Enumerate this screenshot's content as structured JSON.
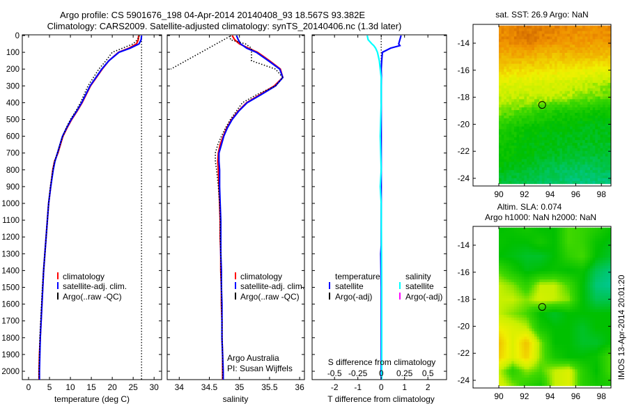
{
  "title": {
    "line1": "Argo profile: CS 5901676_198 04-Apr-2014 20140408_93 18.567S 93.382E",
    "line2": "Climatology: CARS2009. Satellite-adjusted climatology: synTS_20140406.nc (1.3d later)"
  },
  "depth_axis": {
    "ticks": [
      0,
      100,
      200,
      300,
      400,
      500,
      600,
      700,
      800,
      900,
      1000,
      1100,
      1200,
      1300,
      1400,
      1500,
      1600,
      1700,
      1800,
      1900,
      2000
    ],
    "range": [
      0,
      2050
    ]
  },
  "chart_data": [
    {
      "type": "line",
      "title": "temperature profile",
      "xlabel": "temperature (deg C)",
      "xlim": [
        -1.5,
        31.8
      ],
      "xticks": [
        0,
        5,
        10,
        15,
        20,
        25,
        30
      ],
      "reference_line": {
        "value": 27,
        "color": "#000000",
        "style": "dotted"
      },
      "legend": [
        "climatology",
        "satellite-adj. clim.",
        "Argo(..raw -QC)"
      ],
      "series": [
        {
          "name": "climatology",
          "color": "#ff0000",
          "style": "solid",
          "depth": [
            0,
            25,
            50,
            75,
            100,
            150,
            200,
            250,
            300,
            350,
            400,
            450,
            500,
            550,
            600,
            650,
            700,
            750,
            800,
            900,
            1000,
            1100,
            1200,
            1300,
            1400,
            1500,
            1600,
            1700,
            1800,
            1900,
            2000,
            2050
          ],
          "values": [
            26.3,
            26.2,
            25.8,
            24,
            21.5,
            19.2,
            17.6,
            16.2,
            14.8,
            13.8,
            12.8,
            11.6,
            10.3,
            9.2,
            8.2,
            7.6,
            7.0,
            6.2,
            5.8,
            5.3,
            4.8,
            4.5,
            4.2,
            3.9,
            3.6,
            3.4,
            3.2,
            3.0,
            2.8,
            2.6,
            2.5,
            2.5
          ]
        },
        {
          "name": "satellite-adj. clim.",
          "color": "#0000ff",
          "style": "solid",
          "depth": [
            0,
            25,
            50,
            75,
            100,
            150,
            200,
            250,
            300,
            350,
            400,
            450,
            500,
            550,
            600,
            650,
            700,
            750,
            800,
            900,
            1000,
            1100,
            1200,
            1300,
            1400,
            1500,
            1600,
            1700,
            1800,
            1900,
            2000,
            2050
          ],
          "values": [
            27.0,
            26.9,
            26.4,
            24.3,
            21.6,
            19.2,
            17.5,
            16.1,
            14.7,
            13.7,
            12.7,
            11.5,
            10.2,
            9.1,
            8.1,
            7.5,
            6.9,
            6.3,
            5.9,
            5.3,
            4.8,
            4.5,
            4.2,
            3.9,
            3.6,
            3.4,
            3.2,
            3.0,
            2.8,
            2.7,
            2.6,
            2.6
          ]
        },
        {
          "name": "Argo(..raw -QC)",
          "color": "#000000",
          "style": "dotted",
          "depth": [
            0,
            25,
            50,
            75,
            100,
            150,
            200,
            250,
            300,
            350,
            400,
            450,
            500,
            550,
            600,
            650,
            700,
            750,
            800,
            900,
            1000,
            1100,
            1200,
            1300,
            1400,
            1500,
            1600,
            1700,
            1800,
            1900,
            2000,
            2050
          ],
          "values": [
            26.5,
            26.0,
            25.0,
            22.5,
            20.0,
            18.5,
            16.8,
            15.5,
            14.2,
            13.3,
            12.4,
            11.3,
            10.0,
            9.0,
            8.2,
            7.5,
            6.9,
            6.2,
            5.8,
            5.2,
            4.8,
            4.5,
            4.2,
            3.9,
            3.6,
            3.3,
            3.1,
            2.9,
            2.7,
            2.6,
            2.5,
            2.5
          ]
        }
      ]
    },
    {
      "type": "line",
      "title": "salinity profile",
      "xlabel": "salinity",
      "xlim": [
        33.8,
        36.08
      ],
      "xticks": [
        34,
        34.5,
        35,
        35.5,
        36
      ],
      "legend": [
        "climatology",
        "satellite-adj. clim.",
        "Argo(..raw -QC)"
      ],
      "annotation": [
        "Argo Australia",
        "PI: Susan Wijffels"
      ],
      "series": [
        {
          "name": "climatology",
          "color": "#ff0000",
          "style": "solid",
          "depth": [
            0,
            25,
            50,
            75,
            100,
            150,
            200,
            250,
            300,
            350,
            400,
            450,
            500,
            550,
            600,
            650,
            700,
            750,
            800,
            900,
            1000,
            1100,
            1200,
            1300,
            1400,
            1500,
            1600,
            1700,
            1800,
            1900,
            2000,
            2050
          ],
          "values": [
            34.88,
            34.92,
            35.0,
            35.15,
            35.3,
            35.5,
            35.68,
            35.72,
            35.58,
            35.35,
            35.12,
            34.98,
            34.87,
            34.79,
            34.73,
            34.68,
            34.65,
            34.64,
            34.65,
            34.66,
            34.67,
            34.68,
            34.68,
            34.69,
            34.69,
            34.7,
            34.7,
            34.71,
            34.71,
            34.72,
            34.72,
            34.72
          ]
        },
        {
          "name": "satellite-adj. clim.",
          "color": "#0000ff",
          "style": "solid",
          "depth": [
            0,
            25,
            50,
            75,
            100,
            150,
            200,
            250,
            300,
            350,
            400,
            450,
            500,
            550,
            600,
            650,
            700,
            750,
            800,
            900,
            1000,
            1100,
            1200,
            1300,
            1400,
            1500,
            1600,
            1700,
            1800,
            1900,
            2000,
            2050
          ],
          "values": [
            34.95,
            34.98,
            35.02,
            35.12,
            35.28,
            35.48,
            35.67,
            35.72,
            35.6,
            35.37,
            35.13,
            34.99,
            34.88,
            34.8,
            34.74,
            34.7,
            34.66,
            34.66,
            34.67,
            34.67,
            34.68,
            34.69,
            34.69,
            34.69,
            34.7,
            34.7,
            34.71,
            34.71,
            34.71,
            34.72,
            34.73,
            34.73
          ]
        },
        {
          "name": "Argo(..raw -QC)",
          "color": "#000000",
          "style": "dotted",
          "depth": [
            0,
            25,
            50,
            75,
            100,
            150,
            200,
            250,
            300,
            350,
            400,
            450,
            500,
            550,
            600,
            650,
            700,
            750,
            800,
            900,
            1000,
            1100,
            1200,
            1300,
            1400,
            1500,
            1600,
            1700,
            1800,
            1900,
            2000,
            2050
          ],
          "values": [
            34.85,
            34.85,
            35.1,
            35.2,
            35.2,
            35.2,
            35.6,
            35.72,
            35.6,
            35.3,
            35.05,
            34.95,
            34.85,
            34.77,
            34.7,
            34.64,
            34.6,
            34.6,
            34.62,
            34.65,
            34.67,
            34.68,
            34.68,
            34.69,
            34.69,
            34.7,
            34.7,
            34.71,
            34.71,
            34.72,
            34.72,
            34.72
          ]
        },
        {
          "name": "Argo raw segment",
          "color": "#000000",
          "style": "dotted",
          "depth": [
            5,
            200
          ],
          "values": [
            34.84,
            33.86
          ]
        }
      ]
    },
    {
      "type": "line",
      "title": "difference from climatology",
      "xlabel": "T difference from climatology",
      "xlim": [
        -2.96,
        2.8
      ],
      "xticks": [
        -2,
        -1,
        0,
        1,
        2
      ],
      "secondary_xlabel": "S difference from climatology",
      "secondary_xticks": [
        -0.5,
        -0.25,
        0,
        0.25,
        0.5
      ],
      "secondary_xtick_labels": [
        "-0.5",
        "-0.25",
        "0",
        "0.25",
        "0.5"
      ],
      "secondary_scale": 4,
      "reference_line": {
        "value": 0,
        "depth": [
          0,
          250
        ],
        "color": "#000000",
        "style": "dotted"
      },
      "legend_temperature": {
        "heading": "temperature",
        "items": [
          "satellite",
          "Argo(-adj)"
        ],
        "colors": [
          "#0000ff",
          "#000000"
        ]
      },
      "legend_salinity": {
        "heading": "salinity",
        "items": [
          "satellite",
          "Argo(-adj)"
        ],
        "colors": [
          "#00ffff",
          "#ff00ff"
        ]
      },
      "series": [
        {
          "name": "temperature satellite",
          "color": "#0000ff",
          "style": "solid",
          "axis": "T",
          "depth": [
            0,
            25,
            50,
            60,
            75,
            100,
            150,
            200,
            250,
            300,
            400,
            600,
            1000,
            1250,
            1300,
            1500,
            2000,
            2050
          ],
          "values": [
            0.85,
            0.8,
            0.75,
            0.8,
            0.4,
            0.05,
            0.02,
            0.0,
            0.01,
            0.0,
            0.0,
            0,
            0,
            0,
            -0.02,
            0,
            0,
            0
          ]
        },
        {
          "name": "salinity satellite",
          "color": "#00ffff",
          "style": "solid",
          "axis": "S",
          "depth": [
            0,
            25,
            50,
            60,
            75,
            100,
            150,
            200,
            250,
            300,
            400,
            600,
            800,
            900,
            1000,
            1500,
            2000,
            2050
          ],
          "values": [
            -0.15,
            -0.14,
            -0.1,
            -0.08,
            -0.06,
            -0.04,
            -0.02,
            -0.01,
            0,
            0,
            0,
            -0.01,
            0,
            -0.01,
            0.0,
            0.005,
            0.005,
            0.005
          ]
        }
      ]
    },
    {
      "type": "heatmap",
      "title": "sat. SST: 26.9 Argo: NaN",
      "lon_range": [
        90,
        98.7
      ],
      "lat_range": [
        -24.4,
        -12.7
      ],
      "xticks": [
        90,
        92,
        94,
        96,
        98
      ],
      "yticks": [
        -14,
        -16,
        -18,
        -20,
        -22,
        -24
      ],
      "marker": {
        "lon": 93.382,
        "lat": -18.567
      },
      "grid_lats": [
        -13,
        -14,
        -15,
        -16,
        -17,
        -18,
        -19,
        -20,
        -21,
        -22,
        -23,
        -24
      ],
      "grid_values": [
        [
          0.86,
          0.9,
          0.88,
          0.85,
          0.87
        ],
        [
          0.85,
          0.9,
          0.86,
          0.83,
          0.84
        ],
        [
          0.8,
          0.8,
          0.76,
          0.78,
          0.76
        ],
        [
          0.72,
          0.7,
          0.68,
          0.66,
          0.64
        ],
        [
          0.6,
          0.6,
          0.58,
          0.56,
          0.52
        ],
        [
          0.56,
          0.55,
          0.55,
          0.5,
          0.46
        ],
        [
          0.5,
          0.44,
          0.36,
          0.34,
          0.32
        ],
        [
          0.4,
          0.32,
          0.3,
          0.28,
          0.28
        ],
        [
          0.34,
          0.3,
          0.28,
          0.27,
          0.26
        ],
        [
          0.32,
          0.29,
          0.26,
          0.24,
          0.24
        ],
        [
          0.28,
          0.25,
          0.2,
          0.18,
          0.2
        ],
        [
          0.24,
          0.2,
          0.18,
          0.14,
          0.15
        ]
      ]
    },
    {
      "type": "heatmap",
      "title": "Altim. SLA: 0.074",
      "subtitle": "Argo h1000: NaN h2000: NaN",
      "lon_range": [
        90,
        98.7
      ],
      "lat_range": [
        -24.4,
        -12.7
      ],
      "xticks": [
        90,
        92,
        94,
        96,
        98
      ],
      "yticks": [
        -14,
        -16,
        -18,
        -20,
        -22,
        -24
      ],
      "marker": {
        "lon": 93.382,
        "lat": -18.567
      },
      "grid_lats": [
        -13,
        -14,
        -15,
        -16,
        -17,
        -18,
        -19,
        -20,
        -21,
        -22,
        -23,
        -24
      ],
      "grid_values": [
        [
          0.3,
          0.32,
          0.35,
          0.3,
          0.3,
          0.45,
          0.42,
          0.38,
          0.32
        ],
        [
          0.32,
          0.3,
          0.3,
          0.35,
          0.3,
          0.45,
          0.42,
          0.32,
          0.28
        ],
        [
          0.3,
          0.28,
          0.25,
          0.25,
          0.3,
          0.4,
          0.45,
          0.3,
          0.25
        ],
        [
          0.45,
          0.35,
          0.28,
          0.3,
          0.32,
          0.3,
          0.32,
          0.2,
          0.15
        ],
        [
          0.55,
          0.5,
          0.4,
          0.55,
          0.55,
          0.45,
          0.3,
          0.15,
          0.12
        ],
        [
          0.55,
          0.55,
          0.5,
          0.58,
          0.55,
          0.5,
          0.3,
          0.2,
          0.2
        ],
        [
          0.55,
          0.5,
          0.45,
          0.3,
          0.25,
          0.3,
          0.3,
          0.3,
          0.3
        ],
        [
          0.65,
          0.6,
          0.55,
          0.35,
          0.3,
          0.3,
          0.25,
          0.3,
          0.3
        ],
        [
          0.75,
          0.6,
          0.75,
          0.5,
          0.3,
          0.3,
          0.25,
          0.25,
          0.3
        ],
        [
          0.72,
          0.6,
          0.72,
          0.5,
          0.35,
          0.3,
          0.3,
          0.32,
          0.45
        ],
        [
          0.55,
          0.4,
          0.5,
          0.45,
          0.55,
          0.6,
          0.4,
          0.3,
          0.45
        ],
        [
          0.6,
          0.5,
          0.4,
          0.35,
          0.55,
          0.6,
          0.4,
          0.35,
          0.35
        ]
      ]
    }
  ],
  "footer": {
    "stamp": "IMOS 13-Apr-2014 20:01:20"
  }
}
